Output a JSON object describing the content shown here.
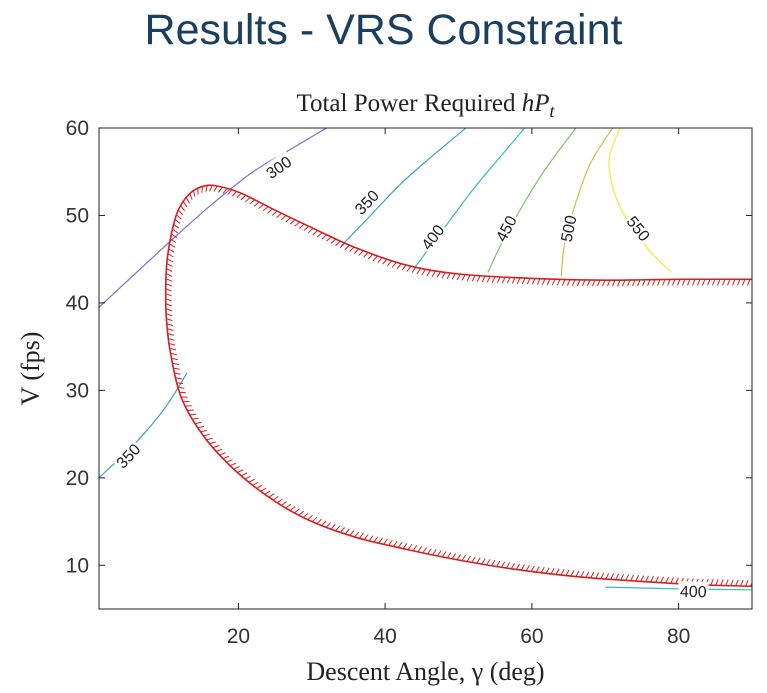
{
  "slide_title": "Results - VRS Constraint",
  "chart_data": {
    "type": "contour",
    "title": "Total Power Required hP_t",
    "title_text": "Total Power Required ",
    "title_math": "hP",
    "title_sub": "t",
    "xlabel": "Descent Angle, γ (deg)",
    "ylabel": "V (fps)",
    "xlim": [
      1,
      90
    ],
    "ylim": [
      5,
      60
    ],
    "xticks": [
      20,
      40,
      60,
      80
    ],
    "yticks": [
      10,
      20,
      30,
      40,
      50,
      60
    ],
    "grid": false,
    "contours": [
      {
        "level": 300,
        "label": "300",
        "color": "#7d6fd6",
        "points": [
          [
            1,
            39.5
          ],
          [
            10,
            46.5
          ],
          [
            16,
            51
          ],
          [
            22,
            55
          ],
          [
            28,
            58
          ],
          [
            32,
            60
          ]
        ],
        "label_at": [
          25.5,
          55.5
        ]
      },
      {
        "level": 350,
        "label": "350",
        "color": "#3fa1cf",
        "points": [
          [
            34,
            46.5
          ],
          [
            38,
            50
          ],
          [
            42,
            53.5
          ],
          [
            46,
            56.5
          ],
          [
            51,
            60
          ]
        ],
        "label_at": [
          37.5,
          51.5
        ]
      },
      {
        "level": 350,
        "label": "350",
        "color": "#3fa1cf",
        "points": [
          [
            1,
            20
          ],
          [
            6,
            24
          ],
          [
            10,
            28
          ],
          [
            13,
            32
          ]
        ],
        "label_at": [
          5,
          22.5
        ]
      },
      {
        "level": 400,
        "label": "400",
        "color": "#3bbfae",
        "points": [
          [
            44,
            44
          ],
          [
            48,
            48.5
          ],
          [
            52,
            53
          ],
          [
            56,
            57
          ],
          [
            59,
            60
          ]
        ],
        "label_at": [
          46.5,
          47.5
        ]
      },
      {
        "level": 400,
        "label": "400",
        "color": "#3bbfae",
        "points": [
          [
            70,
            7.5
          ],
          [
            80,
            7.3
          ],
          [
            90,
            7.2
          ]
        ],
        "label_at": [
          82,
          7.0
        ]
      },
      {
        "level": 450,
        "label": "450",
        "color": "#7ec26a",
        "points": [
          [
            54,
            43.5
          ],
          [
            56,
            47
          ],
          [
            59,
            51.5
          ],
          [
            62,
            55.5
          ],
          [
            66,
            60
          ]
        ],
        "label_at": [
          56.5,
          48.5
        ]
      },
      {
        "level": 500,
        "label": "500",
        "color": "#c6c34a",
        "points": [
          [
            64,
            43
          ],
          [
            64.5,
            47
          ],
          [
            66,
            51.5
          ],
          [
            68,
            56
          ],
          [
            71,
            60
          ]
        ],
        "label_at": [
          65,
          48.5
        ]
      },
      {
        "level": 550,
        "label": "550",
        "color": "#ecec3a",
        "points": [
          [
            72,
            60
          ],
          [
            70.5,
            56
          ],
          [
            72,
            51
          ],
          [
            75.5,
            46.5
          ],
          [
            79,
            43.5
          ]
        ],
        "label_at": [
          74.5,
          48.5
        ]
      }
    ],
    "vrs_boundary": {
      "color": "#d62020",
      "points": [
        [
          90,
          42.7
        ],
        [
          80,
          42.7
        ],
        [
          70,
          42.6
        ],
        [
          60,
          42.8
        ],
        [
          50,
          43.3
        ],
        [
          43,
          44.3
        ],
        [
          36,
          46.3
        ],
        [
          30,
          48.6
        ],
        [
          25,
          50.6
        ],
        [
          20.5,
          52.5
        ],
        [
          17.5,
          53.3
        ],
        [
          15.5,
          53.4
        ],
        [
          13.5,
          52.6
        ],
        [
          11.8,
          50.6
        ],
        [
          10.9,
          48
        ],
        [
          10.3,
          45
        ],
        [
          10.1,
          42
        ],
        [
          10.2,
          38
        ],
        [
          10.8,
          34
        ],
        [
          12.3,
          29
        ],
        [
          15.5,
          24.5
        ],
        [
          20,
          20.5
        ],
        [
          25,
          17.3
        ],
        [
          30,
          15
        ],
        [
          36,
          13.2
        ],
        [
          43,
          11.8
        ],
        [
          50,
          10.6
        ],
        [
          58,
          9.5
        ],
        [
          66,
          8.7
        ],
        [
          74,
          8.2
        ],
        [
          82,
          7.8
        ],
        [
          90,
          7.6
        ]
      ]
    }
  }
}
